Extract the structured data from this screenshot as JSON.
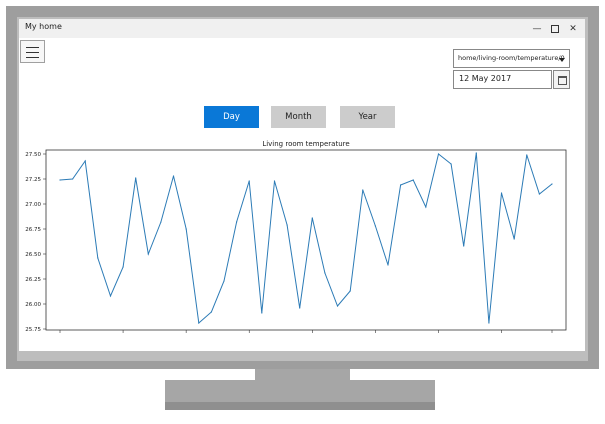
{
  "window": {
    "title": "My home",
    "controls": {
      "minimize": "—",
      "close": "✕"
    }
  },
  "sensor_select": {
    "value": "home/living-room/temperature/0"
  },
  "date_field": {
    "value": "12 May 2017"
  },
  "period_tabs": [
    {
      "label": "Day",
      "active": true
    },
    {
      "label": "Month",
      "active": false
    },
    {
      "label": "Year",
      "active": false
    }
  ],
  "colors": {
    "accent": "#0a78d7",
    "series": "#2c7bb6",
    "tab_inactive": "#cccccc"
  },
  "chart_data": {
    "type": "line",
    "title": "Living room temperature",
    "xlabel": "",
    "ylabel": "",
    "ylim": [
      25.74,
      27.54
    ],
    "yticks": [
      "25.75",
      "26.00",
      "26.25",
      "26.50",
      "26.75",
      "27.00",
      "27.25",
      "27.50"
    ],
    "grid": false,
    "series": [
      {
        "x": [
          0,
          1,
          2,
          3,
          4,
          5,
          6,
          7,
          8,
          9,
          10,
          11,
          12,
          13,
          14,
          15,
          16,
          17,
          18,
          19,
          20,
          21,
          22,
          23,
          24,
          25,
          26,
          27,
          28,
          29,
          30,
          31,
          32,
          33,
          34,
          35,
          36,
          37,
          38,
          39
        ],
        "values": [
          27.24,
          27.25,
          27.43,
          26.46,
          26.08,
          26.37,
          27.26,
          26.5,
          26.82,
          27.28,
          26.75,
          25.81,
          25.92,
          26.23,
          26.82,
          27.23,
          25.91,
          27.23,
          26.79,
          25.96,
          26.86,
          26.31,
          25.98,
          26.13,
          27.14,
          26.78,
          26.39,
          27.19,
          27.24,
          26.97,
          27.5,
          27.4,
          26.58,
          27.51,
          25.81,
          27.11,
          26.65,
          27.49,
          27.1,
          27.2
        ]
      }
    ]
  }
}
